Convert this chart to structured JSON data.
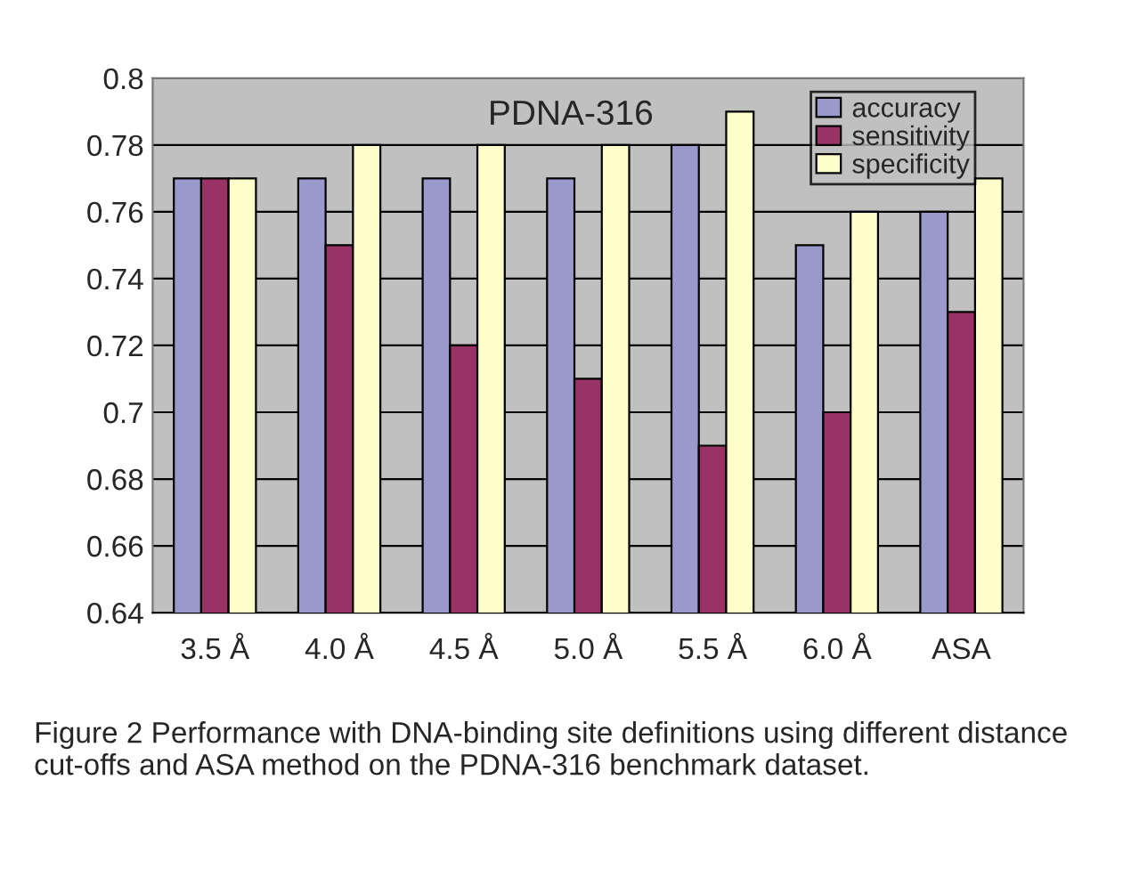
{
  "chart_data": {
    "type": "bar",
    "title": "PDNA-316",
    "categories": [
      "3.5 Å",
      "4.0 Å",
      "4.5 Å",
      "5.0 Å",
      "5.5 Å",
      "6.0 Å",
      "ASA"
    ],
    "series": [
      {
        "name": "accuracy",
        "color": "#9999cc",
        "values": [
          0.77,
          0.77,
          0.77,
          0.77,
          0.78,
          0.75,
          0.76
        ]
      },
      {
        "name": "sensitivity",
        "color": "#993366",
        "values": [
          0.77,
          0.75,
          0.72,
          0.71,
          0.69,
          0.7,
          0.73
        ]
      },
      {
        "name": "specificity",
        "color": "#ffffcc",
        "values": [
          0.77,
          0.78,
          0.78,
          0.78,
          0.79,
          0.76,
          0.77
        ]
      }
    ],
    "ylim": [
      0.64,
      0.8
    ],
    "yticks": [
      0.64,
      0.66,
      0.68,
      0.7,
      0.72,
      0.74,
      0.76,
      0.78,
      0.8
    ],
    "grid": "y",
    "legend": "top right",
    "annotations": [
      "Figure 2 Performance with DNA-binding site definitions using different distance cut-offs and ASA method on the PDNA-316 benchmark dataset."
    ]
  }
}
